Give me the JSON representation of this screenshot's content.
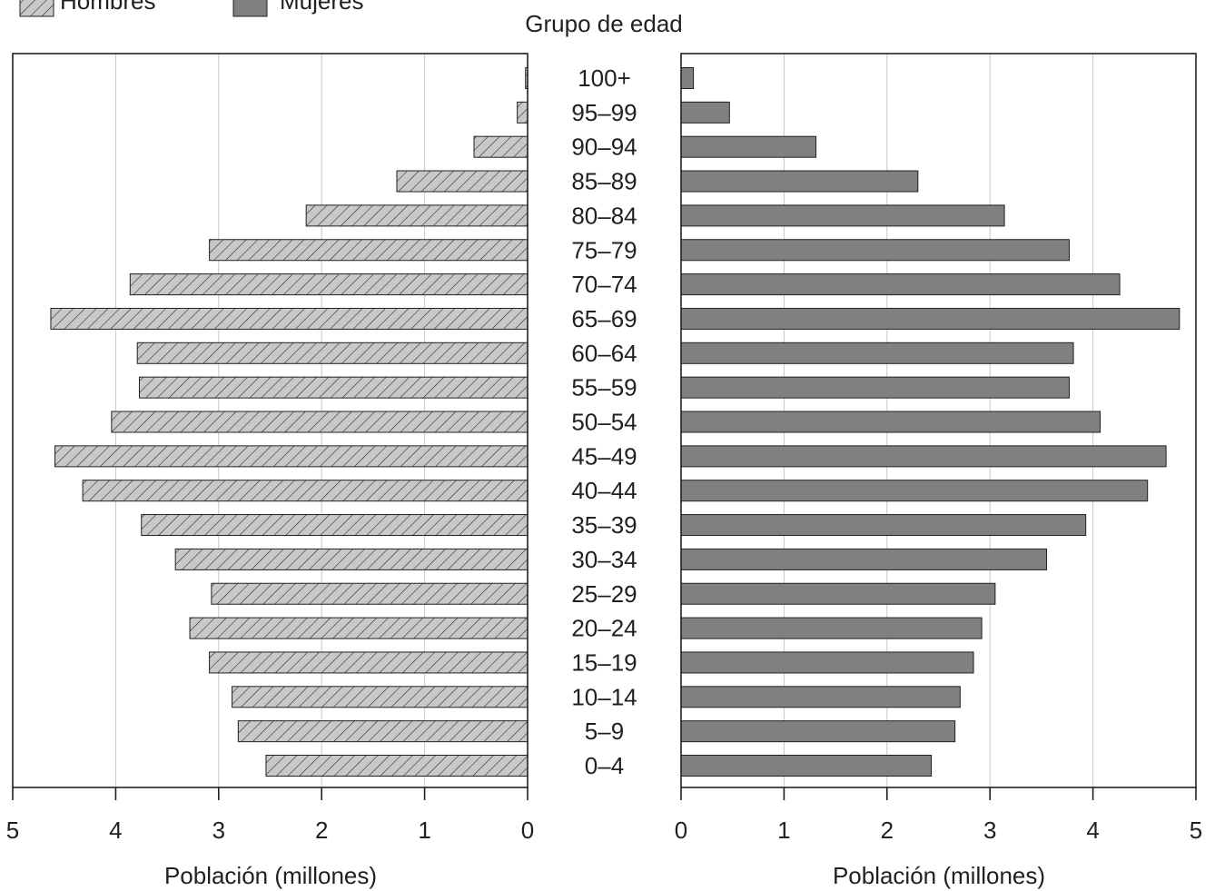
{
  "chart_data": {
    "type": "bar",
    "orientation": "horizontal",
    "layout": "population-pyramid",
    "title": "Grupo de edad",
    "legend": {
      "placement": "top-left",
      "entries": [
        "Hombres",
        "Mujeres"
      ]
    },
    "categories": [
      "100+",
      "95–99",
      "90–94",
      "85–89",
      "80–84",
      "75–79",
      "70–74",
      "65–69",
      "60–64",
      "55–59",
      "50–54",
      "45–49",
      "40–44",
      "35–39",
      "30–34",
      "25–29",
      "20–24",
      "15–19",
      "10–14",
      "5–9",
      "0–4"
    ],
    "series": [
      {
        "name": "Hombres",
        "pattern": "hatched",
        "color": "#c8c8c8",
        "values": [
          0.02,
          0.1,
          0.52,
          1.27,
          2.15,
          3.09,
          3.86,
          4.63,
          3.79,
          3.77,
          4.04,
          4.59,
          4.32,
          3.75,
          3.42,
          3.07,
          3.28,
          3.09,
          2.87,
          2.81,
          2.54
        ]
      },
      {
        "name": "Mujeres",
        "pattern": "solid",
        "color": "#808080",
        "values": [
          0.12,
          0.47,
          1.31,
          2.3,
          3.14,
          3.77,
          4.26,
          4.84,
          3.81,
          3.77,
          4.07,
          4.71,
          4.53,
          3.93,
          3.55,
          3.05,
          2.92,
          2.84,
          2.71,
          2.66,
          2.43
        ]
      }
    ],
    "xlabel": "Población (millones)",
    "xlim": [
      0,
      5
    ],
    "xticks": [
      0,
      1,
      2,
      3,
      4,
      5
    ],
    "grid": true
  }
}
